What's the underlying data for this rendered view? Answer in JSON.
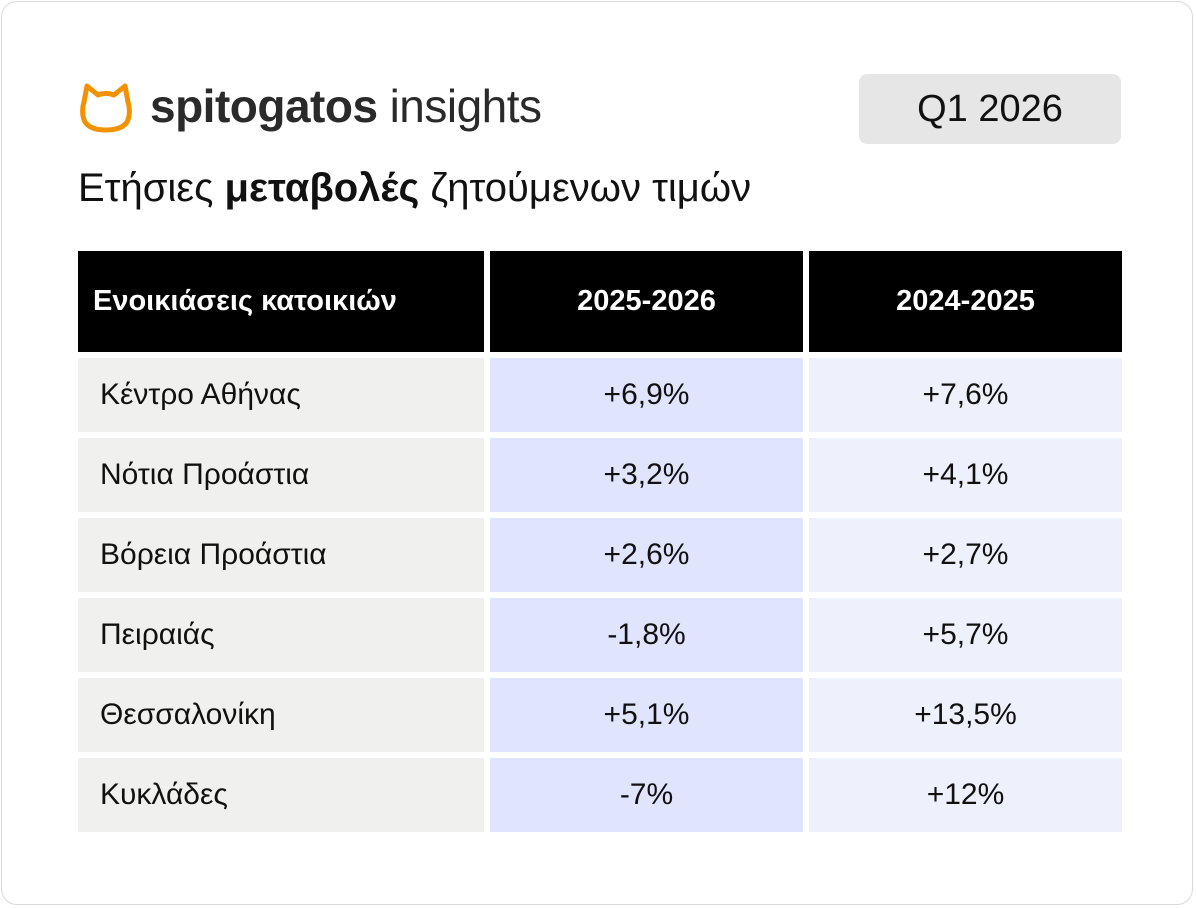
{
  "brand": {
    "name_bold": "spitogatos",
    "name_light": "insights",
    "accent_color": "#f39200"
  },
  "period": "Q1 2026",
  "title": {
    "part1": "Ετήσιες ",
    "bold": "μεταβολές",
    "part2": " ζητούμενων τιμών"
  },
  "table": {
    "headers": [
      "Ενοικιάσεις κατοικιών",
      "2025-2026",
      "2024-2025"
    ],
    "rows": [
      {
        "region": "Κέντρο Αθήνας",
        "y2526": "+6,9%",
        "y2425": "+7,6%"
      },
      {
        "region": "Νότια Προάστια",
        "y2526": "+3,2%",
        "y2425": "+4,1%"
      },
      {
        "region": "Βόρεια Προάστια",
        "y2526": "+2,6%",
        "y2425": "+2,7%"
      },
      {
        "region": "Πειραιάς",
        "y2526": "-1,8%",
        "y2425": "+5,7%"
      },
      {
        "region": "Θεσσαλονίκη",
        "y2526": "+5,1%",
        "y2425": "+13,5%"
      },
      {
        "region": "Κυκλάδες",
        "y2526": "-7%",
        "y2425": "+12%"
      }
    ]
  }
}
